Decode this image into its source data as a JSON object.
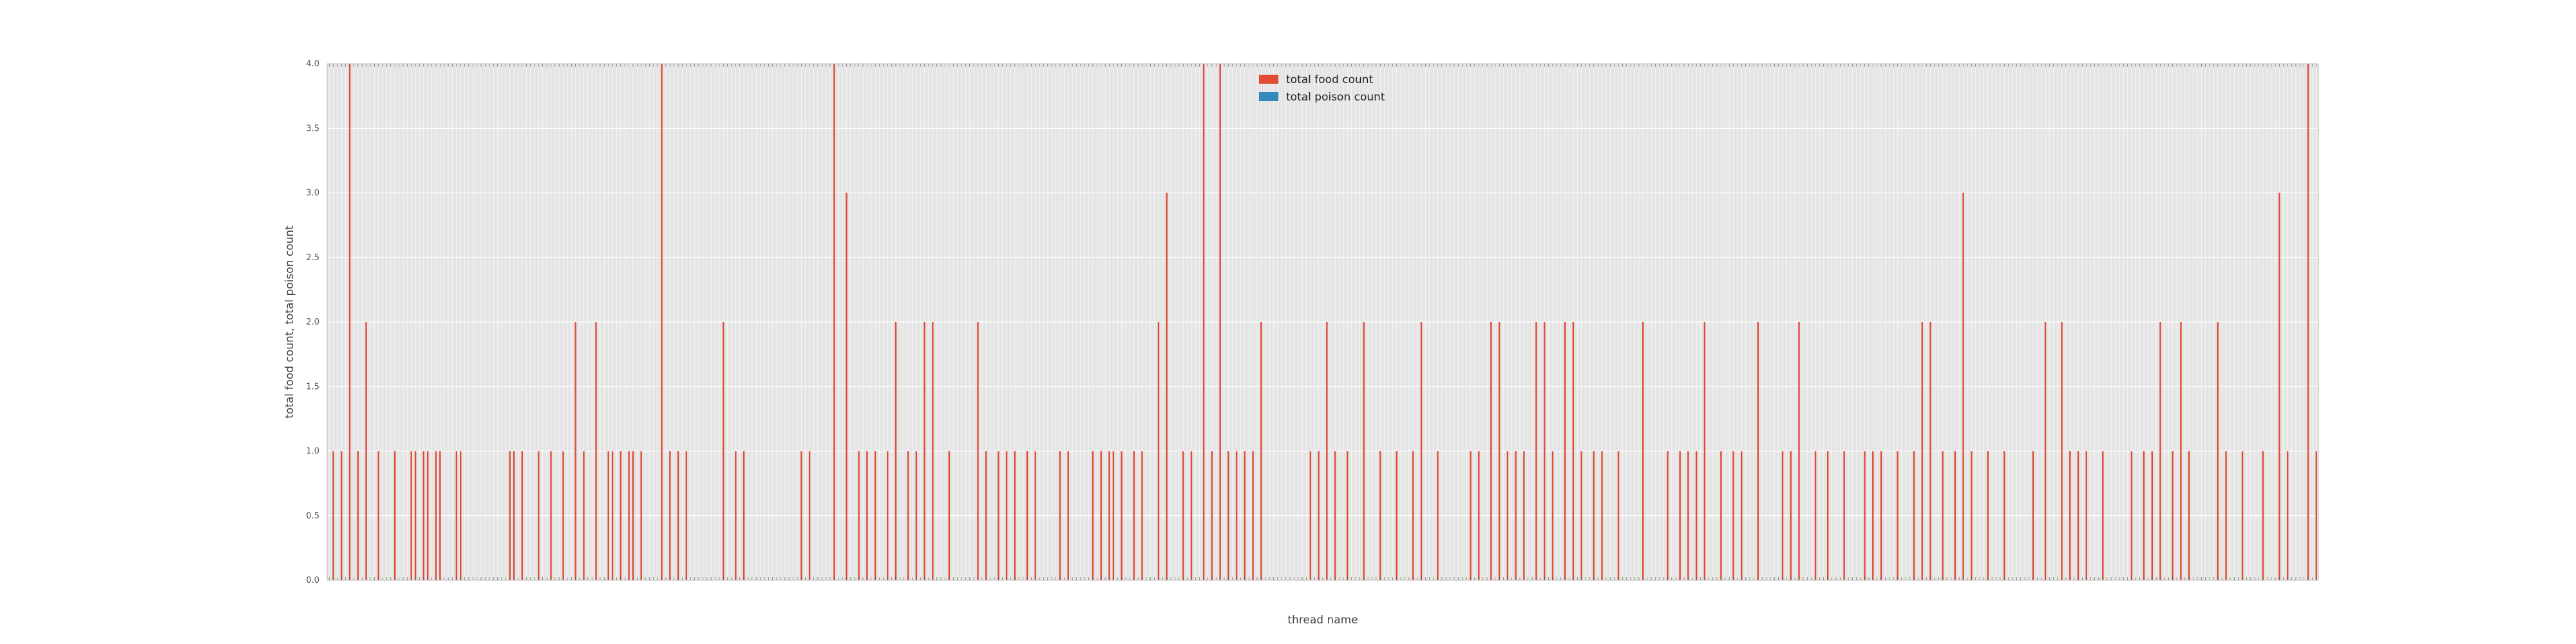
{
  "chart_data": {
    "type": "bar",
    "title": "",
    "xlabel": "thread name",
    "ylabel": "total food count, total poison count",
    "ylim": [
      0,
      4
    ],
    "yticks": [
      "0.0",
      "0.5",
      "1.0",
      "1.5",
      "2.0",
      "2.5",
      "3.0",
      "3.5",
      "4.0"
    ],
    "grid": true,
    "legend_position": "top-center",
    "colors": {
      "background": "#e5e5e5",
      "grid": "#ffffff",
      "food": "#e24a33",
      "poison": "#348abd"
    },
    "series": [
      {
        "name": "total food count",
        "values": [
          0,
          1,
          0,
          1,
          0,
          4,
          0,
          1,
          0,
          2,
          0,
          0,
          1,
          0,
          0,
          0,
          1,
          0,
          0,
          0,
          1,
          1,
          0,
          1,
          1,
          0,
          1,
          1,
          0,
          0,
          0,
          1,
          1,
          0,
          0,
          0,
          0,
          0,
          0,
          0,
          0,
          0,
          0,
          0,
          1,
          1,
          0,
          1,
          0,
          0,
          0,
          1,
          0,
          0,
          1,
          0,
          0,
          1,
          0,
          0,
          2,
          0,
          1,
          0,
          0,
          2,
          0,
          0,
          1,
          1,
          0,
          1,
          0,
          1,
          1,
          0,
          1,
          0,
          0,
          0,
          0,
          4,
          0,
          1,
          0,
          1,
          0,
          1,
          0,
          0,
          0,
          0,
          0,
          0,
          0,
          0,
          2,
          0,
          0,
          1,
          0,
          1,
          0,
          0,
          0,
          0,
          0,
          0,
          0,
          0,
          0,
          0,
          0,
          0,
          0,
          1,
          0,
          1,
          0,
          0,
          0,
          0,
          0,
          4,
          0,
          0,
          3,
          0,
          0,
          1,
          0,
          1,
          0,
          1,
          0,
          0,
          1,
          0,
          2,
          0,
          0,
          1,
          0,
          1,
          0,
          2,
          0,
          2,
          0,
          0,
          0,
          1,
          0,
          0,
          0,
          0,
          0,
          0,
          2,
          0,
          1,
          0,
          0,
          1,
          0,
          1,
          0,
          1,
          0,
          0,
          1,
          0,
          1,
          0,
          0,
          0,
          0,
          0,
          1,
          0,
          1,
          0,
          0,
          0,
          0,
          0,
          1,
          0,
          1,
          0,
          1,
          1,
          0,
          1,
          0,
          0,
          1,
          0,
          1,
          0,
          0,
          0,
          2,
          0,
          3,
          0,
          0,
          0,
          1,
          0,
          1,
          0,
          0,
          4,
          0,
          1,
          0,
          4,
          0,
          1,
          0,
          1,
          0,
          1,
          0,
          1,
          0,
          2,
          0,
          0,
          0,
          0,
          0,
          0,
          0,
          0,
          0,
          0,
          0,
          1,
          0,
          1,
          0,
          2,
          0,
          1,
          0,
          0,
          1,
          0,
          0,
          0,
          2,
          0,
          0,
          0,
          1,
          0,
          0,
          0,
          1,
          0,
          0,
          0,
          1,
          0,
          2,
          0,
          0,
          0,
          1,
          0,
          0,
          0,
          0,
          0,
          0,
          0,
          1,
          0,
          1,
          0,
          0,
          2,
          0,
          2,
          0,
          1,
          0,
          1,
          0,
          1,
          0,
          0,
          2,
          0,
          2,
          0,
          1,
          0,
          0,
          2,
          0,
          2,
          0,
          1,
          0,
          0,
          1,
          0,
          1,
          0,
          0,
          0,
          1,
          0,
          0,
          0,
          0,
          0,
          2,
          0,
          0,
          0,
          0,
          0,
          1,
          0,
          0,
          1,
          0,
          1,
          0,
          1,
          0,
          2,
          0,
          0,
          0,
          1,
          0,
          0,
          1,
          0,
          1,
          0,
          0,
          0,
          2,
          0,
          0,
          0,
          0,
          0,
          1,
          0,
          1,
          0,
          2,
          0,
          0,
          0,
          1,
          0,
          0,
          1,
          0,
          0,
          0,
          1,
          0,
          0,
          0,
          0,
          1,
          0,
          1,
          0,
          1,
          0,
          0,
          0,
          1,
          0,
          0,
          0,
          1,
          0,
          2,
          0,
          2,
          0,
          0,
          1,
          0,
          0,
          1,
          0,
          3,
          0,
          1,
          0,
          0,
          0,
          1,
          0,
          0,
          0,
          1,
          0,
          0,
          0,
          0,
          0,
          0,
          1,
          0,
          0,
          2,
          0,
          0,
          0,
          2,
          0,
          1,
          0,
          1,
          0,
          1,
          0,
          0,
          0,
          1,
          0,
          0,
          0,
          0,
          0,
          0,
          1,
          0,
          0,
          1,
          0,
          1,
          0,
          2,
          0,
          0,
          1,
          0,
          2,
          0,
          1,
          0,
          0,
          0,
          0,
          0,
          0,
          2,
          0,
          1,
          0,
          0,
          0,
          1,
          0,
          0,
          0,
          0,
          1,
          0,
          0,
          0,
          3,
          0,
          1,
          0,
          0,
          0,
          0,
          4,
          0,
          1
        ]
      },
      {
        "name": "total poison count",
        "values": []
      }
    ]
  }
}
